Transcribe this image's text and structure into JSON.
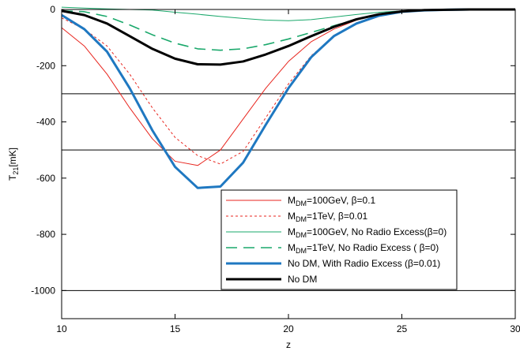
{
  "chart_data": {
    "type": "line",
    "title": "",
    "xlabel": "z",
    "ylabel": {
      "main": "T",
      "sub": "21",
      "rest": "[mK]"
    },
    "xlim": [
      10,
      30
    ],
    "ylim": [
      -1100,
      0
    ],
    "xticks": [
      10,
      15,
      20,
      25,
      30
    ],
    "xtick_labels": [
      "10",
      "15",
      "20",
      "25",
      "30"
    ],
    "yticks": [
      0,
      -200,
      -400,
      -600,
      -800,
      -1000
    ],
    "ytick_labels": [
      "0",
      "-200",
      "-400",
      "-600",
      "-800",
      "-1000"
    ],
    "grid": false,
    "reference_lines": [
      -300,
      -500,
      -1000
    ],
    "legend_position": "inside lower right",
    "x": [
      10,
      11,
      12,
      13,
      14,
      15,
      16,
      17,
      18,
      19,
      20,
      21,
      22,
      23,
      24,
      25,
      26,
      27,
      28,
      29,
      30
    ],
    "series": [
      {
        "legend": {
          "main": "M",
          "sub": "DM",
          "rest": "=100GeV, β=0.1"
        },
        "color": "#e8261f",
        "style": "solid",
        "width": "thin",
        "values": [
          -65,
          -130,
          -230,
          -350,
          -460,
          -540,
          -555,
          -500,
          -390,
          -280,
          -185,
          -115,
          -70,
          -38,
          -18,
          -8,
          -4,
          -2,
          -1,
          0,
          0
        ]
      },
      {
        "legend": {
          "main": "M",
          "sub": "DM",
          "rest": "=1TeV, β=0.01"
        },
        "color": "#e8261f",
        "style": "dotted",
        "width": "thin",
        "values": [
          -30,
          -70,
          -130,
          -230,
          -350,
          -455,
          -520,
          -550,
          -505,
          -385,
          -265,
          -165,
          -95,
          -52,
          -24,
          -10,
          -5,
          -2,
          -1,
          0,
          0
        ]
      },
      {
        "legend": {
          "main": "M",
          "sub": "DM",
          "rest": "=100GeV, No Radio Excess(β=0)"
        },
        "color": "#1aa86b",
        "style": "solid",
        "width": "thin",
        "values": [
          8,
          5,
          2,
          0,
          -2,
          -10,
          -17,
          -25,
          -32,
          -38,
          -40,
          -36,
          -27,
          -18,
          -10,
          -5,
          -2,
          -1,
          0,
          0,
          0
        ]
      },
      {
        "legend": {
          "main": "M",
          "sub": "DM",
          "rest": "=1TeV, No Radio Excess ( β=0)"
        },
        "color": "#1aa86b",
        "style": "dashed",
        "width": "medium",
        "values": [
          -5,
          -8,
          -25,
          -55,
          -90,
          -120,
          -140,
          -145,
          -140,
          -125,
          -105,
          -82,
          -58,
          -35,
          -18,
          -8,
          -3,
          -1,
          0,
          0,
          0
        ]
      },
      {
        "legend": {
          "main": "No DM, With Radio Excess (β=0.01)",
          "sub": "",
          "rest": ""
        },
        "color": "#1f78c1",
        "style": "solid",
        "width": "thick",
        "values": [
          -20,
          -70,
          -150,
          -280,
          -430,
          -560,
          -635,
          -630,
          -545,
          -410,
          -280,
          -170,
          -95,
          -50,
          -22,
          -8,
          -3,
          -1,
          0,
          0,
          0
        ]
      },
      {
        "legend": {
          "main": "No DM",
          "sub": "",
          "rest": ""
        },
        "color": "#000000",
        "style": "solid",
        "width": "thick",
        "values": [
          -5,
          -20,
          -50,
          -95,
          -140,
          -175,
          -195,
          -196,
          -185,
          -160,
          -130,
          -95,
          -62,
          -35,
          -17,
          -7,
          -2,
          -1,
          0,
          0,
          0
        ]
      }
    ]
  }
}
